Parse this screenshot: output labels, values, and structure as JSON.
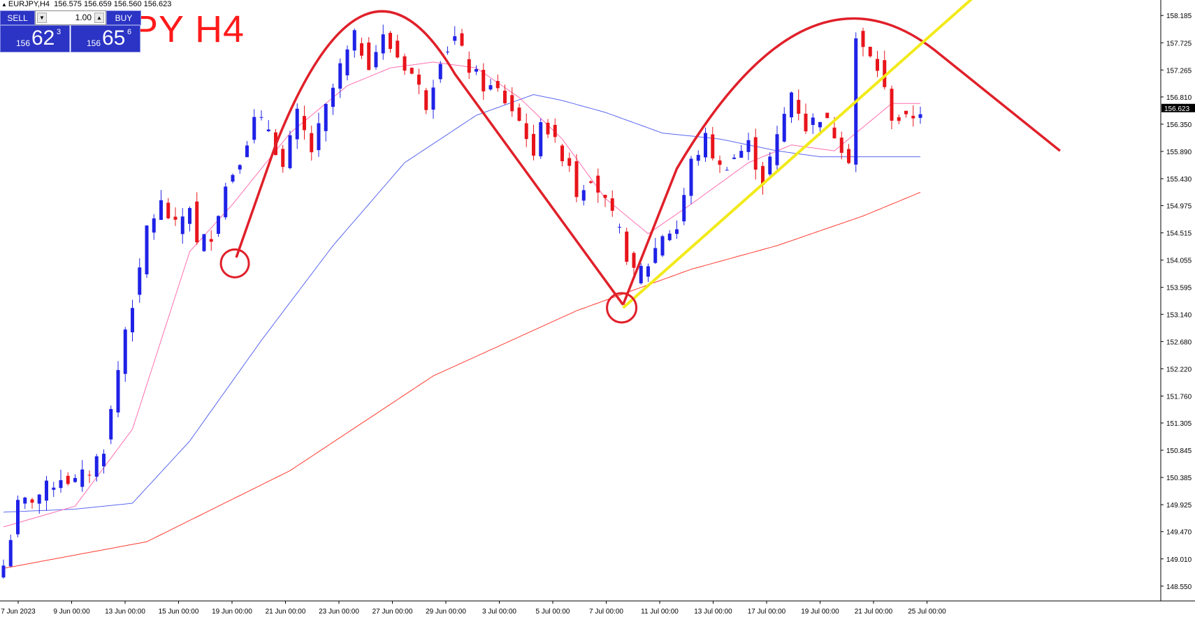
{
  "header": {
    "symbol": "EURJPY,H4",
    "ohlc": "156.575 156.659 156.560 156.623",
    "annotation_title": "PY H4"
  },
  "trade_panel": {
    "sell_label": "SELL",
    "buy_label": "BUY",
    "volume": "1.00",
    "sell_price_small": "156",
    "sell_price_big": "62",
    "sell_price_sup": "3",
    "buy_price_small": "156",
    "buy_price_big": "65",
    "buy_price_sup": "6"
  },
  "colors": {
    "bull": "#1f22e6",
    "bear": "#e8141b",
    "ma_fast": "#ff6fb0",
    "ma_mid": "#5a68f0",
    "ma_slow": "#ff3b2f",
    "drawing_red": "#e0202a",
    "trendline_yellow": "#f2ea1a"
  },
  "chart_data": {
    "type": "candlestick",
    "symbol": "EURJPY",
    "timeframe": "H4",
    "ylim": [
      148.3,
      158.4
    ],
    "y_ticks": [
      "158.185",
      "157.725",
      "157.265",
      "156.810",
      "156.350",
      "155.890",
      "155.430",
      "154.975",
      "154.515",
      "154.055",
      "153.595",
      "153.140",
      "152.680",
      "152.220",
      "151.760",
      "151.305",
      "150.845",
      "150.385",
      "149.925",
      "149.470",
      "149.010",
      "148.550"
    ],
    "x_ticks": [
      "7 Jun 2023",
      "9 Jun 00:00",
      "13 Jun 00:00",
      "15 Jun 00:00",
      "19 Jun 00:00",
      "21 Jun 00:00",
      "23 Jun 00:00",
      "27 Jun 00:00",
      "29 Jun 00:00",
      "3 Jul 00:00",
      "5 Jul 00:00",
      "7 Jul 00:00",
      "11 Jul 00:00",
      "13 Jul 00:00",
      "17 Jul 00:00",
      "19 Jul 00:00",
      "21 Jul 00:00",
      "25 Jul 00:00"
    ],
    "current_price": "156.623",
    "close_path": [
      [
        0,
        148.9
      ],
      [
        2,
        149.9
      ],
      [
        5,
        150.1
      ],
      [
        8,
        150.4
      ],
      [
        10,
        150.3
      ],
      [
        12,
        150.5
      ],
      [
        14,
        150.9
      ],
      [
        15,
        151.5
      ],
      [
        17,
        152.9
      ],
      [
        19,
        153.8
      ],
      [
        20,
        154.6
      ],
      [
        22,
        155.0
      ],
      [
        24,
        154.6
      ],
      [
        26,
        155.0
      ],
      [
        27,
        154.3
      ],
      [
        29,
        154.5
      ],
      [
        31,
        155.3
      ],
      [
        33,
        155.8
      ],
      [
        35,
        156.4
      ],
      [
        37,
        156.3
      ],
      [
        39,
        155.6
      ],
      [
        41,
        156.5
      ],
      [
        43,
        155.9
      ],
      [
        45,
        156.6
      ],
      [
        47,
        157.3
      ],
      [
        49,
        157.8
      ],
      [
        51,
        157.4
      ],
      [
        53,
        157.8
      ],
      [
        55,
        157.5
      ],
      [
        57,
        157.2
      ],
      [
        59,
        156.7
      ],
      [
        61,
        157.5
      ],
      [
        63,
        157.8
      ],
      [
        65,
        157.3
      ],
      [
        67,
        157.0
      ],
      [
        69,
        156.9
      ],
      [
        71,
        156.6
      ],
      [
        73,
        156.2
      ],
      [
        74,
        155.7
      ],
      [
        75,
        156.5
      ],
      [
        77,
        156.0
      ],
      [
        79,
        155.7
      ],
      [
        80,
        155.2
      ],
      [
        82,
        155.5
      ],
      [
        84,
        155.0
      ],
      [
        86,
        154.5
      ],
      [
        88,
        153.8
      ],
      [
        90,
        154.0
      ],
      [
        92,
        154.5
      ],
      [
        94,
        154.6
      ],
      [
        96,
        155.7
      ],
      [
        98,
        156.1
      ],
      [
        100,
        155.6
      ],
      [
        102,
        155.8
      ],
      [
        104,
        156.0
      ],
      [
        106,
        155.4
      ],
      [
        108,
        156.1
      ],
      [
        110,
        156.9
      ],
      [
        112,
        156.3
      ],
      [
        114,
        156.5
      ],
      [
        116,
        156.2
      ],
      [
        118,
        155.8
      ],
      [
        119,
        157.8
      ],
      [
        120,
        157.6
      ],
      [
        122,
        157.3
      ],
      [
        124,
        156.5
      ],
      [
        126,
        156.4
      ],
      [
        128,
        156.6
      ]
    ],
    "moving_averages": {
      "fast": [
        [
          0,
          149.55
        ],
        [
          10,
          149.9
        ],
        [
          18,
          151.2
        ],
        [
          26,
          154.2
        ],
        [
          32,
          155.0
        ],
        [
          40,
          156.2
        ],
        [
          48,
          157.0
        ],
        [
          54,
          157.3
        ],
        [
          60,
          157.4
        ],
        [
          66,
          157.3
        ],
        [
          72,
          156.8
        ],
        [
          78,
          156.1
        ],
        [
          84,
          155.1
        ],
        [
          90,
          154.5
        ],
        [
          96,
          155.0
        ],
        [
          104,
          155.7
        ],
        [
          110,
          156.0
        ],
        [
          116,
          155.9
        ],
        [
          120,
          156.3
        ],
        [
          124,
          156.7
        ],
        [
          128,
          156.7
        ]
      ],
      "mid": [
        [
          0,
          149.8
        ],
        [
          10,
          149.85
        ],
        [
          18,
          149.95
        ],
        [
          26,
          151.0
        ],
        [
          36,
          152.7
        ],
        [
          46,
          154.3
        ],
        [
          56,
          155.7
        ],
        [
          66,
          156.5
        ],
        [
          74,
          156.85
        ],
        [
          78,
          156.75
        ],
        [
          84,
          156.55
        ],
        [
          92,
          156.2
        ],
        [
          100,
          156.1
        ],
        [
          108,
          155.9
        ],
        [
          114,
          155.8
        ],
        [
          120,
          155.8
        ],
        [
          128,
          155.8
        ]
      ],
      "slow": [
        [
          0,
          148.85
        ],
        [
          20,
          149.3
        ],
        [
          40,
          150.5
        ],
        [
          60,
          152.1
        ],
        [
          80,
          153.2
        ],
        [
          96,
          153.9
        ],
        [
          108,
          154.3
        ],
        [
          120,
          154.8
        ],
        [
          128,
          155.2
        ]
      ]
    }
  }
}
